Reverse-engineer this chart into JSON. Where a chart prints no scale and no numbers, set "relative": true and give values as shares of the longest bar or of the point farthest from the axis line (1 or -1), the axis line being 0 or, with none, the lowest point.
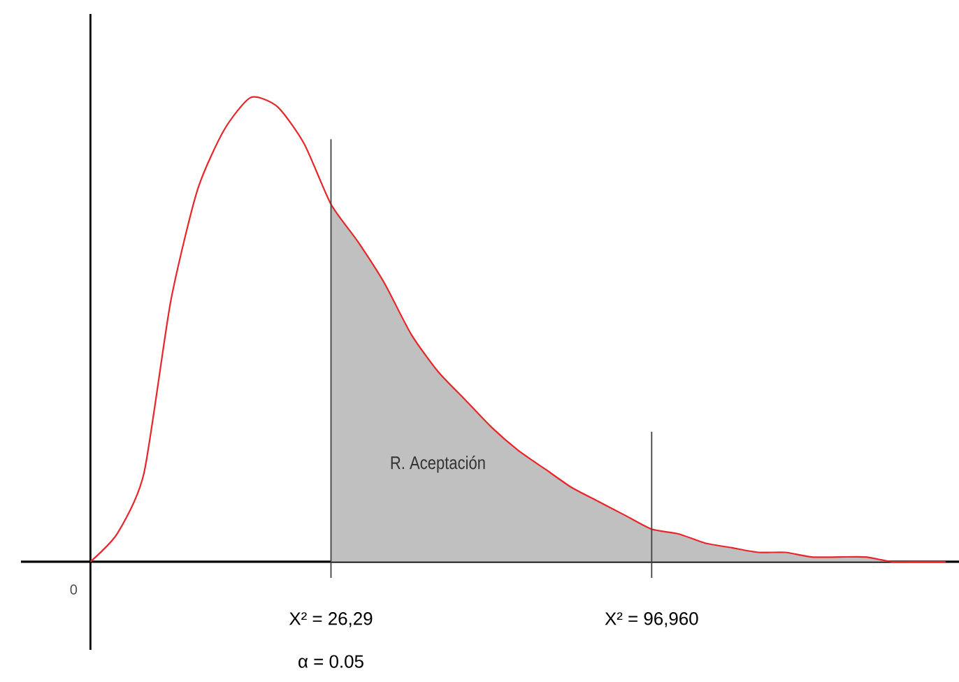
{
  "chart_data": {
    "type": "line",
    "relative": true,
    "categories": [
      null,
      null,
      null,
      null,
      null,
      null,
      null,
      null,
      null,
      null,
      null,
      null,
      null,
      null,
      null,
      null,
      null,
      null,
      null,
      null,
      null,
      null,
      null,
      null,
      null,
      null,
      null,
      null,
      null,
      null,
      null,
      null,
      null
    ],
    "series": [
      {
        "type": "area",
        "color": "#c0c0c0",
        "values": [
          null,
          null,
          null,
          null,
          null,
          null,
          null,
          null,
          null,
          0.77,
          0.69,
          0.6,
          0.49,
          0.41,
          0.35,
          0.29,
          0.24,
          0.2,
          0.16,
          0.13,
          0.1,
          0.07,
          null,
          null,
          null,
          null,
          null,
          null,
          null,
          null,
          null,
          null,
          null
        ]
      },
      {
        "type": "area",
        "color": "#c0c0c0",
        "values": [
          null,
          null,
          null,
          null,
          null,
          null,
          null,
          null,
          null,
          null,
          null,
          null,
          null,
          null,
          null,
          null,
          null,
          null,
          null,
          null,
          null,
          0.07,
          0.06,
          0.04,
          0.03,
          0.02,
          0.02,
          0.01,
          0.01,
          0.01,
          0,
          0,
          0
        ]
      },
      {
        "color": "#e8262a",
        "values": [
          0,
          0.06,
          0.19,
          0.56,
          0.8,
          0.93,
          1,
          0.98,
          0.9,
          0.77,
          0.69,
          0.6,
          0.49,
          0.41,
          0.35,
          0.29,
          0.24,
          0.2,
          0.16,
          0.13,
          0.1,
          0.07,
          0.06,
          0.04,
          0.03,
          0.02,
          0.02,
          0.01,
          0.01,
          0.01,
          0,
          0,
          0
        ]
      }
    ],
    "annotations": [
      "0",
      "X² = 26,29",
      "α   = 0.05",
      "X² = 96,960",
      "R. Aceptación"
    ]
  }
}
